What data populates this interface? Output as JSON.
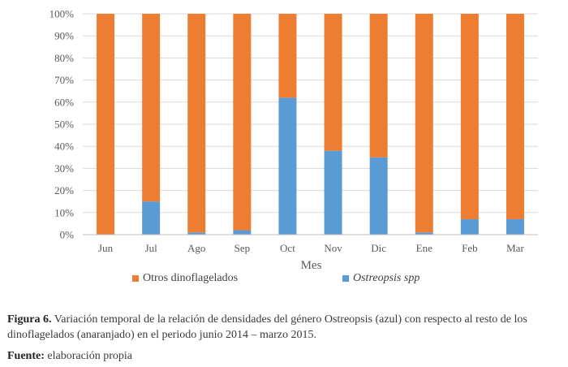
{
  "chart_data": {
    "type": "bar",
    "stacked": true,
    "percent": true,
    "categories": [
      "Jun",
      "Jul",
      "Ago",
      "Sep",
      "Oct",
      "Nov",
      "Dic",
      "Ene",
      "Feb",
      "Mar"
    ],
    "series": [
      {
        "name": "Ostreopsis spp",
        "color": "#5B9BD5",
        "values": [
          0,
          15,
          1,
          2,
          62,
          38,
          35,
          1,
          7,
          7
        ]
      },
      {
        "name": "Otros dinoflagelados",
        "color": "#ED7D31",
        "values": [
          100,
          85,
          99,
          98,
          38,
          62,
          65,
          99,
          93,
          93
        ]
      }
    ],
    "yticks": [
      "0%",
      "10%",
      "20%",
      "30%",
      "40%",
      "50%",
      "60%",
      "70%",
      "80%",
      "90%",
      "100%"
    ],
    "ylim": [
      0,
      100
    ],
    "xlabel": "Mes",
    "ylabel": "",
    "grid": true,
    "legend_position": "bottom"
  },
  "caption": {
    "label": "Figura 6.",
    "text": " Variación temporal de la relación de densidades del género Ostreopsis (azul) con respecto al resto de los dinoflagelados (anaranjado) en el periodo junio 2014 – marzo 2015."
  },
  "source": {
    "label": "Fuente:",
    "text": " elaboración propia"
  }
}
